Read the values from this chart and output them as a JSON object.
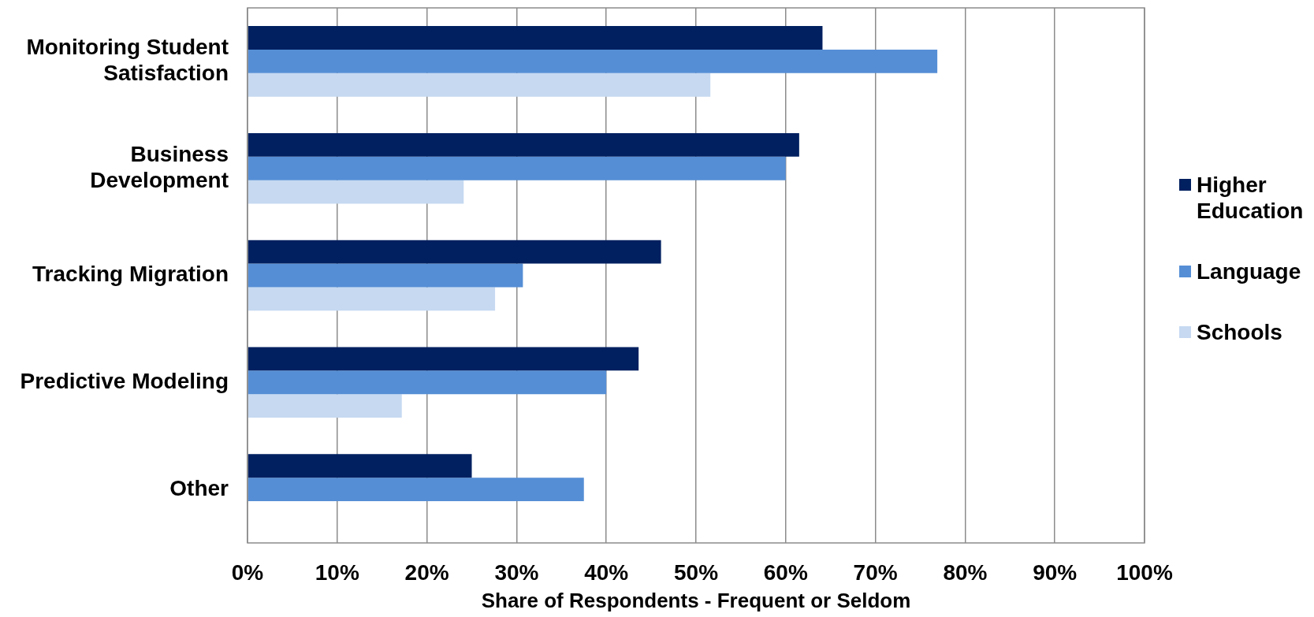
{
  "chart_data": {
    "type": "bar",
    "orientation": "horizontal",
    "categories": [
      "Monitoring Student Satisfaction",
      "Business Development",
      "Tracking Migration",
      "Predictive Modeling",
      "Other"
    ],
    "series": [
      {
        "name": "Higher Education",
        "color": "#002060",
        "values": [
          64.1,
          61.5,
          46.1,
          43.6,
          25.0
        ]
      },
      {
        "name": "Language",
        "color": "#558ed5",
        "values": [
          76.9,
          60.0,
          30.7,
          40.0,
          37.5
        ]
      },
      {
        "name": "Schools",
        "color": "#c6d9f1",
        "values": [
          51.6,
          24.1,
          27.6,
          17.2,
          null
        ]
      }
    ],
    "xlabel": "Share of Respondents - Frequent or Seldom",
    "xlim": [
      0,
      100
    ],
    "xticks": [
      {
        "value": 0,
        "label": "0%"
      },
      {
        "value": 10,
        "label": "10%"
      },
      {
        "value": 20,
        "label": "20%"
      },
      {
        "value": 30,
        "label": "30%"
      },
      {
        "value": 40,
        "label": "40%"
      },
      {
        "value": 50,
        "label": "50%"
      },
      {
        "value": 60,
        "label": "60%"
      },
      {
        "value": 70,
        "label": "70%"
      },
      {
        "value": 80,
        "label": "80%"
      },
      {
        "value": 90,
        "label": "90%"
      },
      {
        "value": 100,
        "label": "100%"
      }
    ],
    "grid": "x",
    "legend": "right"
  }
}
